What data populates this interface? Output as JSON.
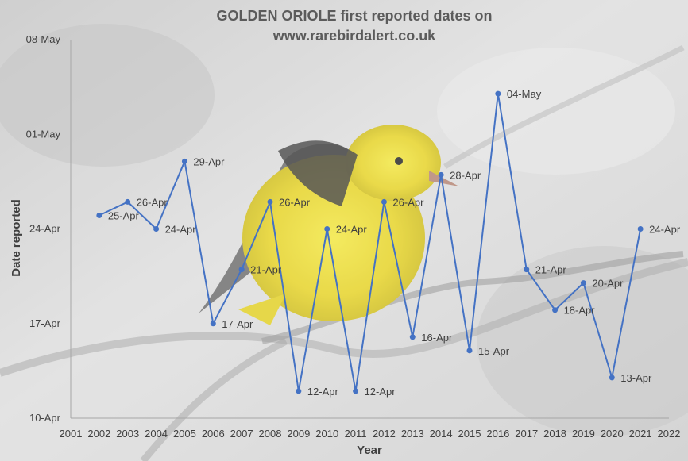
{
  "chart_data": {
    "type": "line",
    "title": "GOLDEN ORIOLE first reported dates on",
    "subtitle": "www.rarebirdalert.co.uk",
    "xlabel": "Year",
    "ylabel": "Date reported",
    "xlim": [
      2001,
      2022
    ],
    "x_ticks": [
      "2001",
      "2002",
      "2003",
      "2004",
      "2005",
      "2006",
      "2007",
      "2008",
      "2009",
      "2010",
      "2011",
      "2012",
      "2013",
      "2014",
      "2015",
      "2016",
      "2017",
      "2018",
      "2019",
      "2020",
      "2021",
      "2022"
    ],
    "ylim": [
      "10-Apr",
      "08-May"
    ],
    "y_ticks": [
      "08-May",
      "01-May",
      "24-Apr",
      "17-Apr",
      "10-Apr"
    ],
    "grid": false,
    "series": [
      {
        "color": "#4472c4",
        "points": [
          {
            "x": 2002,
            "y": "25-Apr"
          },
          {
            "x": 2003,
            "y": "26-Apr"
          },
          {
            "x": 2004,
            "y": "24-Apr"
          },
          {
            "x": 2005,
            "y": "29-Apr"
          },
          {
            "x": 2006,
            "y": "17-Apr"
          },
          {
            "x": 2007,
            "y": "21-Apr"
          },
          {
            "x": 2008,
            "y": "26-Apr"
          },
          {
            "x": 2009,
            "y": "12-Apr"
          },
          {
            "x": 2010,
            "y": "24-Apr"
          },
          {
            "x": 2011,
            "y": "12-Apr"
          },
          {
            "x": 2012,
            "y": "26-Apr"
          },
          {
            "x": 2013,
            "y": "16-Apr"
          },
          {
            "x": 2014,
            "y": "28-Apr"
          },
          {
            "x": 2015,
            "y": "15-Apr"
          },
          {
            "x": 2016,
            "y": "04-May"
          },
          {
            "x": 2017,
            "y": "21-Apr"
          },
          {
            "x": 2018,
            "y": "18-Apr"
          },
          {
            "x": 2019,
            "y": "20-Apr"
          },
          {
            "x": 2020,
            "y": "13-Apr"
          },
          {
            "x": 2021,
            "y": "24-Apr"
          }
        ]
      }
    ]
  }
}
